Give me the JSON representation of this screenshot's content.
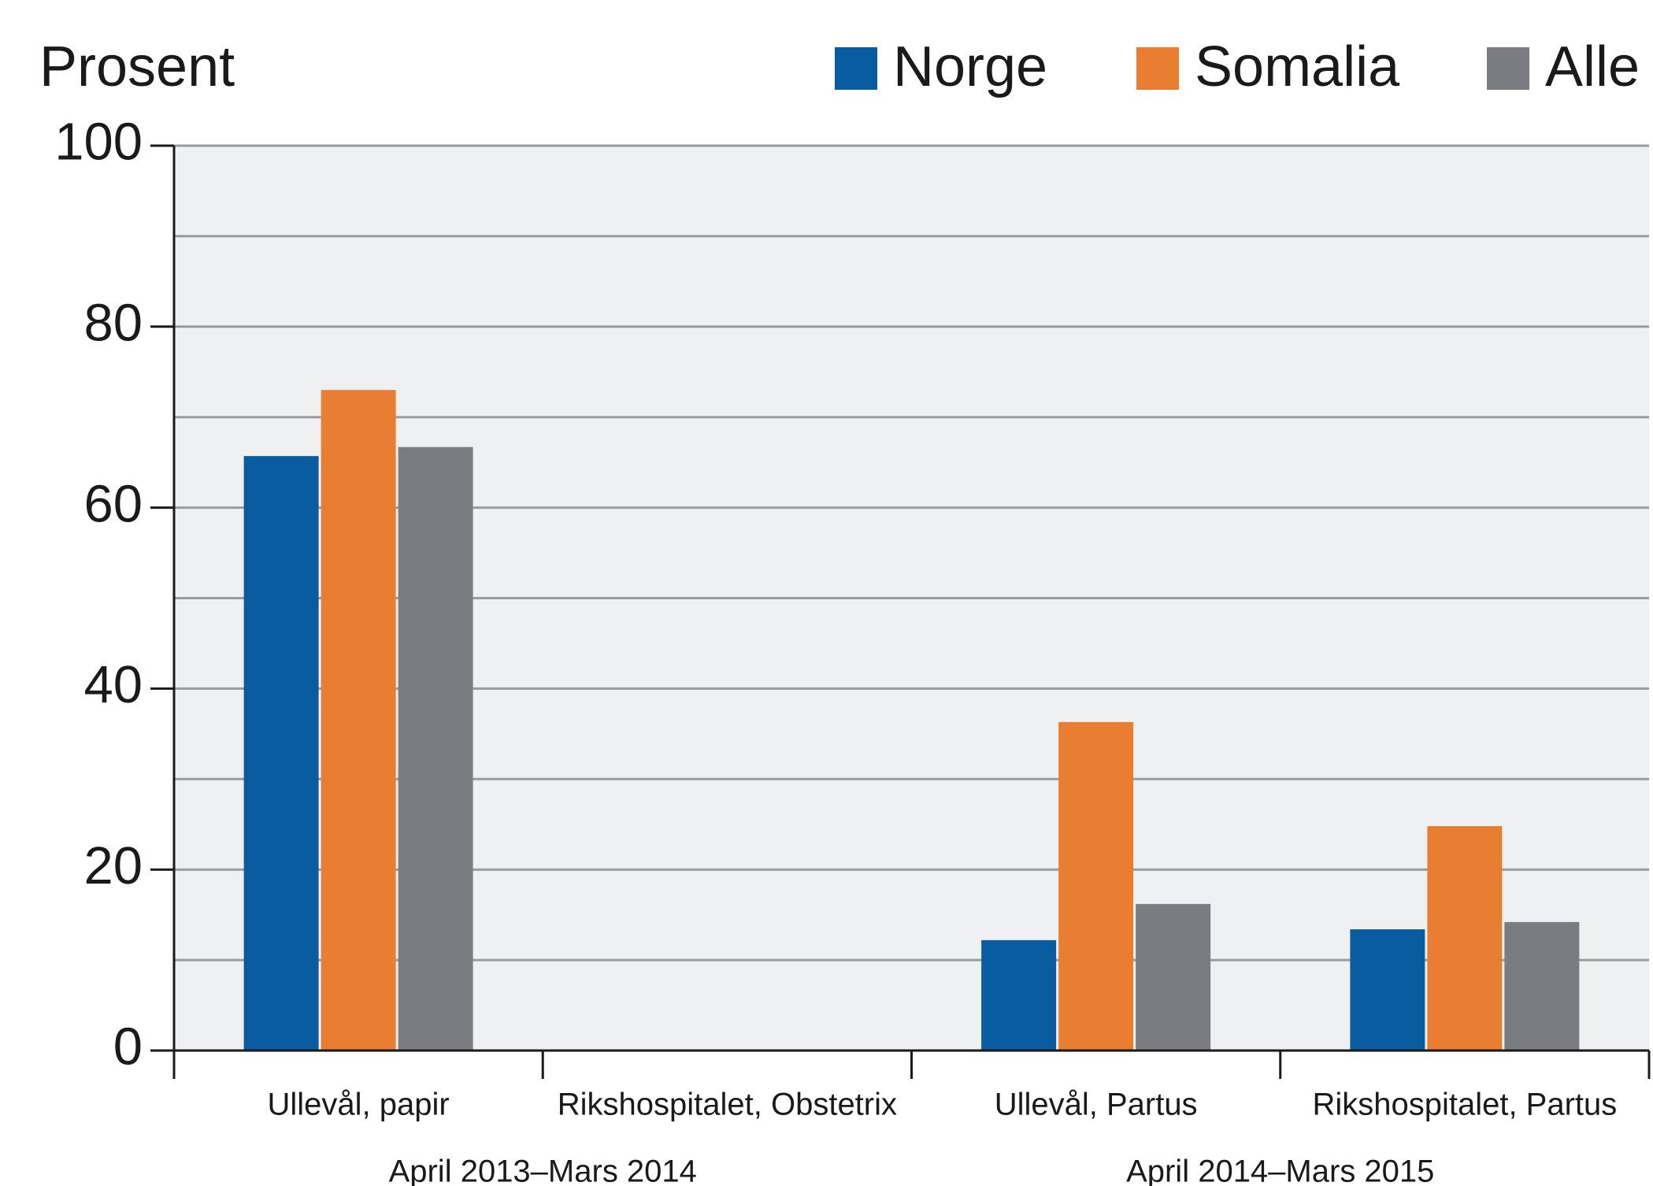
{
  "chart_data": {
    "type": "bar",
    "y_label": "Prosent",
    "categories": [
      "Ullevål, papir",
      "Rikshospitalet, Obstetrix",
      "Ullevål, Partus",
      "Rikshospitalet, Partus"
    ],
    "category_groups": [
      {
        "label": "April 2013–Mars 2014",
        "categories": [
          "Ullevål, papir",
          "Rikshospitalet, Obstetrix"
        ]
      },
      {
        "label": "April 2014–Mars 2015",
        "categories": [
          "Ullevål, Partus",
          "Rikshospitalet, Partus"
        ]
      }
    ],
    "series": [
      {
        "name": "Norge",
        "color": "#0a5ca0",
        "values": [
          65.7,
          null,
          12.2,
          13.4
        ]
      },
      {
        "name": "Somalia",
        "color": "#e97e33",
        "values": [
          73.0,
          null,
          36.3,
          24.8
        ]
      },
      {
        "name": "Alle",
        "color": "#7b7c81",
        "values": [
          66.7,
          null,
          16.2,
          14.2
        ]
      }
    ],
    "ylim": [
      0,
      100
    ],
    "yticks": [
      0,
      20,
      40,
      60,
      80,
      100
    ],
    "yticks_minor": [
      10,
      30,
      50,
      70,
      90
    ],
    "grid": true,
    "legend": "top-right"
  }
}
